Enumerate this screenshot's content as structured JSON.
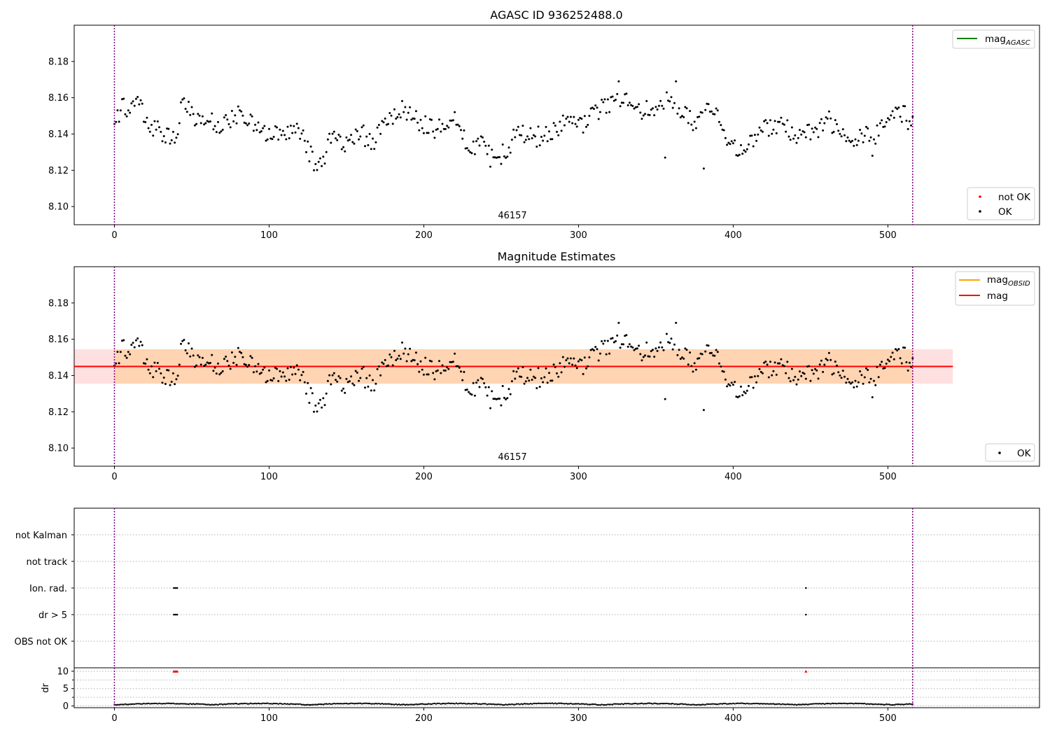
{
  "chart_data": [
    {
      "type": "scatter",
      "title": "AGASC ID 936252488.0",
      "xlim": [
        -26,
        598
      ],
      "ylim": [
        8.09,
        8.2
      ],
      "xticks": [
        0,
        100,
        200,
        300,
        400,
        500
      ],
      "yticks": [
        8.1,
        8.12,
        8.14,
        8.16,
        8.18
      ],
      "obsid_label": "46157",
      "obsid_boundaries": [
        0,
        516
      ],
      "series_color": "#000000",
      "not_ok_color": "#ff0000",
      "legend_lines": [
        {
          "label": "mag",
          "sub": "AGASC",
          "color": "#008000"
        }
      ],
      "legend_points": [
        {
          "label": "not OK",
          "color": "#ff0000"
        },
        {
          "label": "OK",
          "color": "#000000"
        }
      ]
    },
    {
      "type": "scatter",
      "title": "Magnitude Estimates",
      "xlim": [
        -26,
        598
      ],
      "ylim": [
        8.09,
        8.2
      ],
      "xticks": [
        0,
        100,
        200,
        300,
        400,
        500
      ],
      "yticks": [
        8.1,
        8.12,
        8.14,
        8.16,
        8.18
      ],
      "obsid_label": "46157",
      "obsid_boundaries": [
        0,
        516
      ],
      "mag": 8.145,
      "mag_std": 0.0095,
      "band_x": [
        -26,
        542
      ],
      "mag_color": "#ff0000",
      "mag_obsid_color": "#ffa500",
      "legend_lines": [
        {
          "label": "mag",
          "sub": "OBSID",
          "color": "#ffa500"
        },
        {
          "label": "mag",
          "sub": "",
          "color": "#ff0000"
        }
      ],
      "legend_points": [
        {
          "label": "OK",
          "color": "#000000"
        }
      ]
    },
    {
      "type": "scatter",
      "title": "",
      "xlim": [
        -26,
        598
      ],
      "categories": [
        "not Kalman",
        "not track",
        "Ion. rad.",
        "dr > 5",
        "OBS not OK"
      ],
      "flag_points": {
        "Ion. rad.": [
          38.5,
          39.5,
          40.5,
          447
        ],
        "dr > 5": [
          38.5,
          39.5,
          40.5,
          447
        ]
      },
      "obsid_boundaries": [
        0,
        516
      ]
    },
    {
      "type": "scatter",
      "title": "",
      "ylabel": "dr",
      "xlim": [
        -26,
        598
      ],
      "ylim": [
        -0.5,
        11
      ],
      "xticks": [
        0,
        100,
        200,
        300,
        400,
        500
      ],
      "yticks": [
        0,
        5,
        10
      ],
      "clipped_points": [
        38.5,
        39.5,
        40.5,
        447
      ],
      "clipped_value": 10,
      "obsid_boundaries": [
        0,
        516
      ]
    }
  ]
}
